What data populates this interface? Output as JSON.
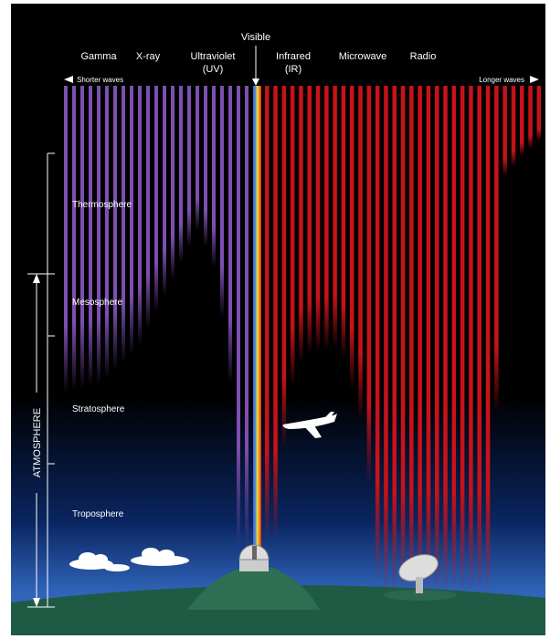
{
  "header": {
    "visible": "Visible",
    "bands": [
      [
        "Gamma"
      ],
      [
        "X-ray"
      ],
      [
        "Ultraviolet",
        "(UV)"
      ],
      [
        "Infrared",
        "(IR)"
      ],
      [
        "Microwave"
      ],
      [
        "Radio"
      ]
    ],
    "shorter": "Shorter waves",
    "longer": "Longer waves"
  },
  "layers": [
    "Thermosphere",
    "Mesosphere",
    "Stratosphere",
    "Troposphere"
  ],
  "atmosphere": "ATMOSPHERE"
}
